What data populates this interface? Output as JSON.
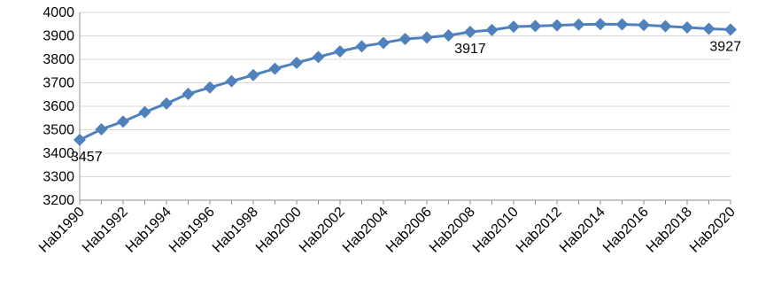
{
  "chart_data": {
    "type": "line",
    "title": "",
    "xlabel": "",
    "ylabel": "",
    "ylim": [
      3200,
      4000
    ],
    "y_ticks": [
      3200,
      3300,
      3400,
      3500,
      3600,
      3700,
      3800,
      3900,
      4000
    ],
    "grid": "horizontal",
    "legend": "none",
    "x": [
      "Hab1990",
      "Hab1991",
      "Hab1992",
      "Hab1993",
      "Hab1994",
      "Hab1995",
      "Hab1996",
      "Hab1997",
      "Hab1998",
      "Hab1999",
      "Hab2000",
      "Hab2001",
      "Hab2002",
      "Hab2003",
      "Hab2004",
      "Hab2005",
      "Hab2006",
      "Hab2007",
      "Hab2008",
      "Hab2009",
      "Hab2010",
      "Hab2011",
      "Hab2012",
      "Hab2013",
      "Hab2014",
      "Hab2015",
      "Hab2016",
      "Hab2017",
      "Hab2018",
      "Hab2019",
      "Hab2020"
    ],
    "x_tick_labels": [
      "Hab1990",
      "Hab1992",
      "Hab1994",
      "Hab1996",
      "Hab1998",
      "Hab2000",
      "Hab2002",
      "Hab2004",
      "Hab2006",
      "Hab2008",
      "Hab2010",
      "Hab2012",
      "Hab2014",
      "Hab2016",
      "Hab2018",
      "Hab2020"
    ],
    "series": [
      {
        "values": [
          3457,
          3502,
          3535,
          3575,
          3612,
          3653,
          3680,
          3707,
          3733,
          3760,
          3785,
          3810,
          3834,
          3855,
          3870,
          3887,
          3893,
          3902,
          3917,
          3925,
          3939,
          3942,
          3945,
          3948,
          3950,
          3949,
          3946,
          3941,
          3936,
          3930,
          3927
        ]
      }
    ],
    "data_labels": [
      {
        "index": 0,
        "text": "3457"
      },
      {
        "index": 18,
        "text": "3917"
      },
      {
        "index": 30,
        "text": "3927"
      }
    ],
    "colors": {
      "series": "#4F81BD",
      "grid": "#D9D9D9",
      "axis": "#8C8C8C"
    }
  }
}
